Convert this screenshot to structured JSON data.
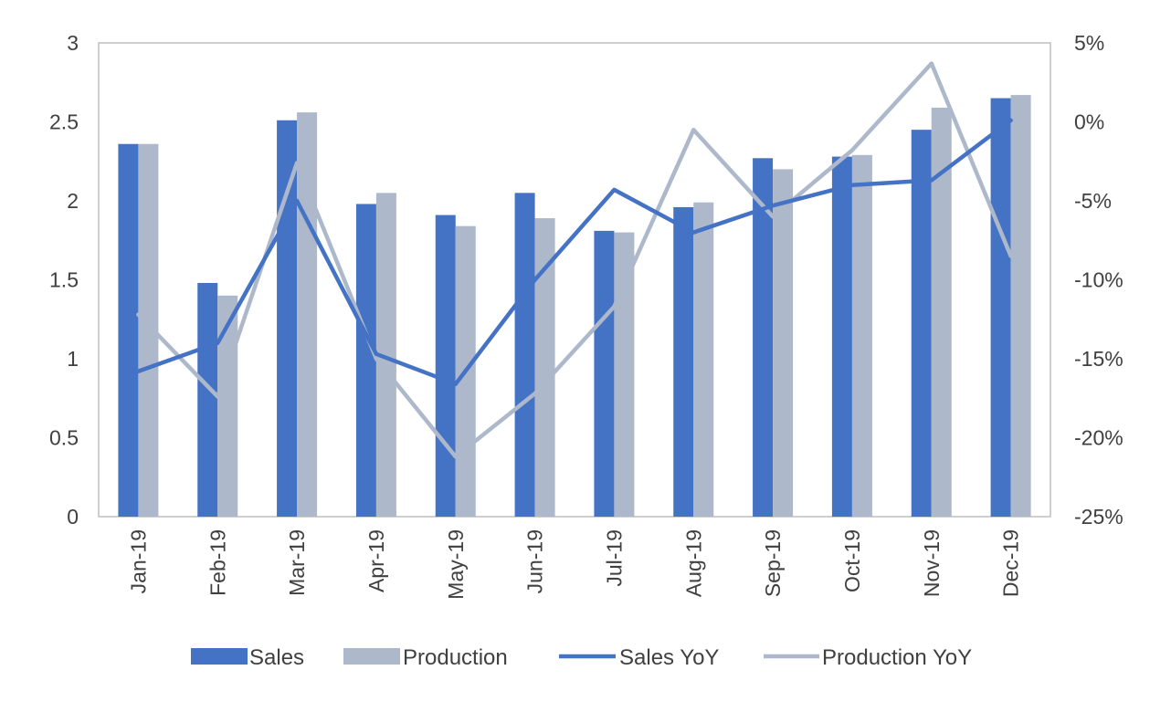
{
  "chart_data": {
    "type": "bar",
    "categories": [
      "Jan-19",
      "Feb-19",
      "Mar-19",
      "Apr-19",
      "May-19",
      "Jun-19",
      "Jul-19",
      "Aug-19",
      "Sep-19",
      "Oct-19",
      "Nov-19",
      "Dec-19"
    ],
    "bar_series": [
      {
        "name": "Sales",
        "color": "#4472C4",
        "values": [
          2.36,
          1.48,
          2.51,
          1.98,
          1.91,
          2.05,
          1.81,
          1.96,
          2.27,
          2.28,
          2.45,
          2.65
        ]
      },
      {
        "name": "Production",
        "color": "#ADB9CA",
        "values": [
          2.36,
          1.4,
          2.56,
          2.05,
          1.84,
          1.89,
          1.8,
          1.99,
          2.2,
          2.29,
          2.59,
          2.67
        ]
      }
    ],
    "line_series": [
      {
        "name": "Sales YoY",
        "color": "#4472C4",
        "values": [
          -15.8,
          -14.0,
          -5.0,
          -14.7,
          -16.6,
          -10.0,
          -4.3,
          -7.0,
          -5.3,
          -4.0,
          -3.7,
          0.1
        ]
      },
      {
        "name": "Production YoY",
        "color": "#ADB9CA",
        "values": [
          -12.2,
          -17.4,
          -2.6,
          -15.0,
          -21.2,
          -17.2,
          -11.7,
          -0.5,
          -6.0,
          -1.8,
          3.7,
          -8.5
        ]
      }
    ],
    "y_left": {
      "min": 0,
      "max": 3,
      "ticks": [
        "0",
        "0.5",
        "1",
        "1.5",
        "2",
        "2.5",
        "3"
      ]
    },
    "y_right": {
      "min": -25,
      "max": 5,
      "ticks": [
        "-25%",
        "-20%",
        "-15%",
        "-10%",
        "-5%",
        "0%",
        "5%"
      ]
    },
    "title": "",
    "xlabel": "",
    "ylabel": "",
    "legend_position": "bottom",
    "grid": false
  }
}
